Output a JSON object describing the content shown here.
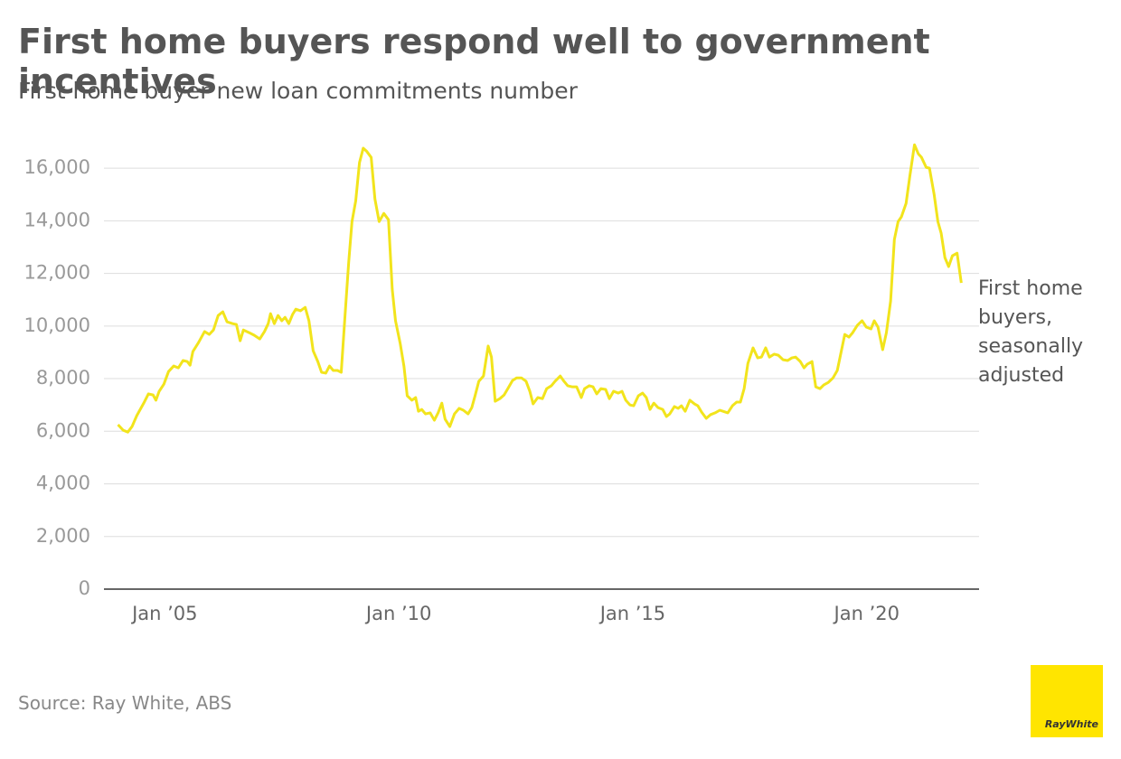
{
  "chart_data": {
    "type": "line",
    "title": "First home buyers respond well to government incentives",
    "subtitle": "First home buyer new loan commitments number",
    "source": "Source: Ray White, ABS",
    "logo_text": "RayWhite",
    "xlim": [
      2003.7,
      2022.4
    ],
    "xticks": [
      {
        "value": 2005,
        "label": "Jan ’05"
      },
      {
        "value": 2010,
        "label": "Jan ’10"
      },
      {
        "value": 2015,
        "label": "Jan ’15"
      },
      {
        "value": 2020,
        "label": "Jan ’20"
      }
    ],
    "ylim": [
      0,
      17000
    ],
    "yticks": [
      0,
      {
        "value": 2000,
        "label": "2,000"
      },
      {
        "value": 4000,
        "label": "4,000"
      },
      {
        "value": 6000,
        "label": "6,000"
      },
      {
        "value": 8000,
        "label": "8,000"
      },
      {
        "value": 10000,
        "label": "10,000"
      },
      {
        "value": 12000,
        "label": "12,000"
      },
      {
        "value": 14000,
        "label": "14,000"
      },
      {
        "value": 16000,
        "label": "16,000"
      }
    ],
    "grid": true,
    "x": [
      2004.0,
      2004.11,
      2004.21,
      2004.3,
      2004.4,
      2004.55,
      2004.65,
      2004.75,
      2004.81,
      2004.88,
      2004.98,
      2005.08,
      2005.19,
      2005.29,
      2005.39,
      2005.48,
      2005.54,
      2005.6,
      2005.72,
      2005.85,
      2005.95,
      2006.04,
      2006.14,
      2006.24,
      2006.33,
      2006.45,
      2006.53,
      2006.61,
      2006.68,
      2006.8,
      2006.91,
      2007.03,
      2007.13,
      2007.21,
      2007.26,
      2007.34,
      2007.42,
      2007.5,
      2007.57,
      2007.65,
      2007.73,
      2007.8,
      2007.9,
      2008.0,
      2008.08,
      2008.17,
      2008.27,
      2008.35,
      2008.44,
      2008.52,
      2008.6,
      2008.69,
      2008.77,
      2008.85,
      2008.93,
      2009.0,
      2009.08,
      2009.16,
      2009.24,
      2009.31,
      2009.41,
      2009.49,
      2009.58,
      2009.68,
      2009.78,
      2009.86,
      2009.93,
      2010.03,
      2010.11,
      2010.18,
      2010.28,
      2010.36,
      2010.42,
      2010.49,
      2010.57,
      2010.67,
      2010.76,
      2010.84,
      2010.92,
      2010.99,
      2011.09,
      2011.19,
      2011.29,
      2011.38,
      2011.48,
      2011.56,
      2011.63,
      2011.71,
      2011.81,
      2011.91,
      2011.98,
      2012.06,
      2012.16,
      2012.25,
      2012.33,
      2012.43,
      2012.52,
      2012.62,
      2012.72,
      2012.8,
      2012.87,
      2012.97,
      2013.07,
      2013.16,
      2013.26,
      2013.34,
      2013.45,
      2013.53,
      2013.61,
      2013.7,
      2013.8,
      2013.9,
      2013.97,
      2014.07,
      2014.15,
      2014.23,
      2014.32,
      2014.42,
      2014.5,
      2014.59,
      2014.69,
      2014.77,
      2014.85,
      2014.94,
      2015.02,
      2015.12,
      2015.21,
      2015.29,
      2015.37,
      2015.45,
      2015.54,
      2015.64,
      2015.72,
      2015.79,
      2015.89,
      2015.97,
      2016.04,
      2016.12,
      2016.22,
      2016.32,
      2016.39,
      2016.47,
      2016.57,
      2016.66,
      2016.76,
      2016.86,
      2016.93,
      2017.03,
      2017.13,
      2017.22,
      2017.3,
      2017.38,
      2017.46,
      2017.57,
      2017.67,
      2017.75,
      2017.84,
      2017.92,
      2018.02,
      2018.11,
      2018.21,
      2018.31,
      2018.4,
      2018.48,
      2018.58,
      2018.66,
      2018.73,
      2018.83,
      2018.91,
      2019.0,
      2019.08,
      2019.18,
      2019.28,
      2019.37,
      2019.45,
      2019.53,
      2019.62,
      2019.7,
      2019.8,
      2019.9,
      2019.99,
      2020.09,
      2020.16,
      2020.24,
      2020.34,
      2020.42,
      2020.51,
      2020.59,
      2020.67,
      2020.74,
      2020.84,
      2020.92,
      2021.02,
      2021.1,
      2021.17,
      2021.27,
      2021.34,
      2021.44,
      2021.52,
      2021.59,
      2021.67,
      2021.75,
      2021.83,
      2021.93,
      2022.02
    ],
    "series": [
      {
        "name": "First home buyers, seasonally adjusted",
        "color": "#f2e41c",
        "values": [
          6250,
          6040,
          5970,
          6180,
          6590,
          7070,
          7420,
          7380,
          7180,
          7520,
          7790,
          8270,
          8480,
          8410,
          8690,
          8650,
          8510,
          9030,
          9370,
          9790,
          9680,
          9850,
          10400,
          10540,
          10160,
          10090,
          10060,
          9440,
          9850,
          9750,
          9650,
          9510,
          9790,
          10090,
          10470,
          10090,
          10400,
          10200,
          10330,
          10090,
          10440,
          10640,
          10580,
          10710,
          10200,
          9060,
          8650,
          8240,
          8210,
          8480,
          8310,
          8310,
          8240,
          10370,
          12430,
          13970,
          14760,
          16210,
          16760,
          16650,
          16410,
          14830,
          13970,
          14280,
          14040,
          11400,
          10200,
          9340,
          8480,
          7350,
          7180,
          7280,
          6760,
          6830,
          6660,
          6700,
          6420,
          6700,
          7070,
          6460,
          6180,
          6660,
          6870,
          6800,
          6660,
          6900,
          7350,
          7900,
          8100,
          9240,
          8820,
          7140,
          7240,
          7380,
          7620,
          7930,
          8030,
          8030,
          7900,
          7520,
          7040,
          7280,
          7240,
          7620,
          7730,
          7900,
          8100,
          7900,
          7730,
          7690,
          7690,
          7280,
          7620,
          7730,
          7690,
          7420,
          7620,
          7590,
          7240,
          7520,
          7450,
          7520,
          7180,
          7000,
          6970,
          7350,
          7450,
          7280,
          6830,
          7070,
          6900,
          6830,
          6560,
          6660,
          6940,
          6870,
          6970,
          6760,
          7180,
          7040,
          6970,
          6730,
          6490,
          6630,
          6700,
          6800,
          6760,
          6700,
          6970,
          7110,
          7110,
          7620,
          8580,
          9170,
          8790,
          8820,
          9170,
          8820,
          8930,
          8890,
          8720,
          8690,
          8790,
          8820,
          8650,
          8410,
          8550,
          8650,
          7690,
          7620,
          7760,
          7860,
          8030,
          8310,
          8990,
          9680,
          9580,
          9750,
          10030,
          10200,
          9960,
          9890,
          10200,
          9960,
          9100,
          9750,
          10950,
          13290,
          13970,
          14150,
          14660,
          15690,
          16890,
          16550,
          16410,
          16030,
          16000,
          15000,
          13970,
          13530,
          12600,
          12260,
          12670,
          12770,
          11640
        ]
      }
    ]
  }
}
